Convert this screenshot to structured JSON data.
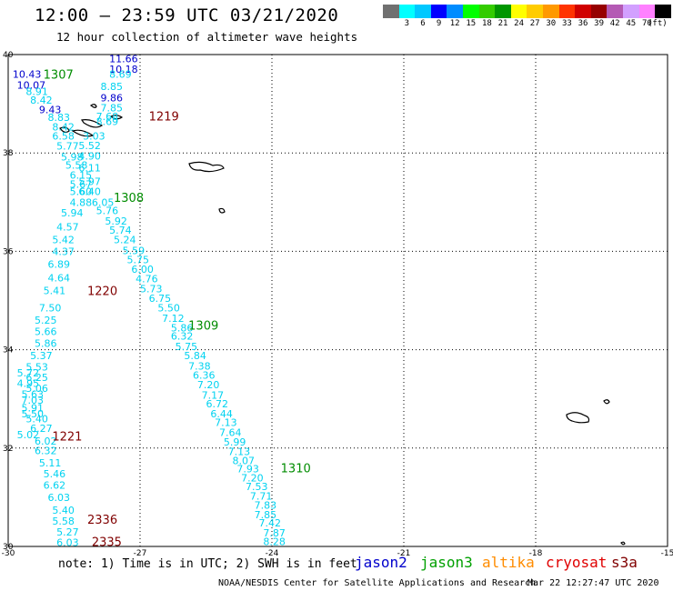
{
  "header": {
    "title": "12:00 – 23:59 UTC 03/21/2020",
    "subtitle": "12 hour collection of altimeter wave heights"
  },
  "scale": {
    "unit_label": "(ft)",
    "swatches": [
      {
        "color": "#707070",
        "label": ""
      },
      {
        "color": "#00ffff",
        "label": "3"
      },
      {
        "color": "#00c8ff",
        "label": "6"
      },
      {
        "color": "#0000ff",
        "label": "9"
      },
      {
        "color": "#008cff",
        "label": "12"
      },
      {
        "color": "#00ff00",
        "label": "15"
      },
      {
        "color": "#33cc00",
        "label": "18"
      },
      {
        "color": "#009600",
        "label": "21"
      },
      {
        "color": "#ffff00",
        "label": "24"
      },
      {
        "color": "#ffcc00",
        "label": "27"
      },
      {
        "color": "#ff9900",
        "label": "30"
      },
      {
        "color": "#ff3300",
        "label": "33"
      },
      {
        "color": "#d00000",
        "label": "36"
      },
      {
        "color": "#960000",
        "label": "39"
      },
      {
        "color": "#b45ab4",
        "label": "42"
      },
      {
        "color": "#d2a0ff",
        "label": "45"
      },
      {
        "color": "#ff80ff",
        "label": "70"
      },
      {
        "color": "#000000",
        "label": ""
      }
    ]
  },
  "map": {
    "lon_labels": [
      {
        "value": -30,
        "label": "-30"
      },
      {
        "value": -27,
        "label": "-27"
      },
      {
        "value": -24,
        "label": "-24"
      },
      {
        "value": -21,
        "label": "-21"
      },
      {
        "value": -18,
        "label": "-18"
      },
      {
        "value": -15,
        "label": "-15"
      }
    ],
    "lat_labels": [
      {
        "value": 40,
        "label": "40"
      },
      {
        "value": 38,
        "label": "38"
      },
      {
        "value": 36,
        "label": "36"
      },
      {
        "value": 34,
        "label": "34"
      },
      {
        "value": 32,
        "label": "32"
      },
      {
        "value": 30,
        "label": "30"
      }
    ],
    "pass_colors": {
      "cyan": "#00d2f0",
      "blue": "#0000cc",
      "green": "#008c00",
      "red": "#800000"
    },
    "pass_labels": [
      {
        "text": "1307",
        "lon": -29.2,
        "lat": 39.6,
        "color": "green"
      },
      {
        "text": "1219",
        "lon": -26.8,
        "lat": 38.75,
        "color": "red"
      },
      {
        "text": "1308",
        "lon": -27.6,
        "lat": 37.1,
        "color": "green"
      },
      {
        "text": "1220",
        "lon": -28.2,
        "lat": 35.2,
        "color": "red"
      },
      {
        "text": "1309",
        "lon": -25.9,
        "lat": 34.5,
        "color": "green"
      },
      {
        "text": "1221",
        "lon": -29.0,
        "lat": 32.25,
        "color": "red"
      },
      {
        "text": "1310",
        "lon": -23.8,
        "lat": 31.6,
        "color": "green"
      },
      {
        "text": "2336",
        "lon": -28.2,
        "lat": 30.55,
        "color": "red"
      },
      {
        "text": "2335",
        "lon": -28.1,
        "lat": 30.1,
        "color": "red"
      }
    ],
    "wave_labels": [
      {
        "text": "11.66",
        "lon": -27.7,
        "lat": 39.92,
        "color": "blue"
      },
      {
        "text": "10.43",
        "lon": -29.9,
        "lat": 39.6,
        "color": "blue"
      },
      {
        "text": "10.18",
        "lon": -27.7,
        "lat": 39.7,
        "color": "blue"
      },
      {
        "text": "10.07",
        "lon": -29.8,
        "lat": 39.38,
        "color": "blue"
      },
      {
        "text": "8.69",
        "lon": -27.7,
        "lat": 39.6,
        "color": "cyan"
      },
      {
        "text": "8.91",
        "lon": -29.6,
        "lat": 39.25,
        "color": "cyan"
      },
      {
        "text": "8.85",
        "lon": -27.9,
        "lat": 39.35,
        "color": "cyan"
      },
      {
        "text": "8.42",
        "lon": -29.5,
        "lat": 39.08,
        "color": "cyan"
      },
      {
        "text": "9.86",
        "lon": -27.9,
        "lat": 39.12,
        "color": "blue"
      },
      {
        "text": "9.43",
        "lon": -29.3,
        "lat": 38.88,
        "color": "blue"
      },
      {
        "text": "7.85",
        "lon": -27.9,
        "lat": 38.92,
        "color": "cyan"
      },
      {
        "text": "8.83",
        "lon": -29.1,
        "lat": 38.72,
        "color": "cyan"
      },
      {
        "text": "7.68",
        "lon": -28.0,
        "lat": 38.74,
        "color": "cyan"
      },
      {
        "text": "8.42",
        "lon": -29.0,
        "lat": 38.53,
        "color": "cyan"
      },
      {
        "text": "8.69",
        "lon": -28.0,
        "lat": 38.64,
        "color": "cyan"
      },
      {
        "text": "6.58",
        "lon": -29.0,
        "lat": 38.35,
        "color": "cyan"
      },
      {
        "text": "3.03",
        "lon": -28.3,
        "lat": 38.35,
        "color": "cyan"
      },
      {
        "text": "5.77",
        "lon": -28.9,
        "lat": 38.14,
        "color": "cyan"
      },
      {
        "text": "5.52",
        "lon": -28.4,
        "lat": 38.15,
        "color": "cyan"
      },
      {
        "text": "5.98",
        "lon": -28.8,
        "lat": 37.92,
        "color": "cyan"
      },
      {
        "text": "4.90",
        "lon": -28.4,
        "lat": 37.94,
        "color": "cyan"
      },
      {
        "text": "5.58",
        "lon": -28.7,
        "lat": 37.75,
        "color": "cyan"
      },
      {
        "text": "6.11",
        "lon": -28.4,
        "lat": 37.7,
        "color": "cyan"
      },
      {
        "text": "6.15",
        "lon": -28.6,
        "lat": 37.55,
        "color": "cyan"
      },
      {
        "text": "5.97",
        "lon": -28.4,
        "lat": 37.42,
        "color": "cyan"
      },
      {
        "text": "5.67",
        "lon": -28.6,
        "lat": 37.37,
        "color": "cyan"
      },
      {
        "text": "5.60",
        "lon": -28.6,
        "lat": 37.22,
        "color": "cyan"
      },
      {
        "text": "6.40",
        "lon": -28.4,
        "lat": 37.22,
        "color": "cyan"
      },
      {
        "text": "4.88",
        "lon": -28.6,
        "lat": 37.0,
        "color": "cyan"
      },
      {
        "text": "6.05",
        "lon": -28.1,
        "lat": 37.0,
        "color": "cyan"
      },
      {
        "text": "5.94",
        "lon": -28.8,
        "lat": 36.78,
        "color": "cyan"
      },
      {
        "text": "5.76",
        "lon": -28.0,
        "lat": 36.83,
        "color": "cyan"
      },
      {
        "text": "5.92",
        "lon": -27.8,
        "lat": 36.62,
        "color": "cyan"
      },
      {
        "text": "4.57",
        "lon": -28.9,
        "lat": 36.5,
        "color": "cyan"
      },
      {
        "text": "5.74",
        "lon": -27.7,
        "lat": 36.43,
        "color": "cyan"
      },
      {
        "text": "5.42",
        "lon": -29.0,
        "lat": 36.24,
        "color": "cyan"
      },
      {
        "text": "5.24",
        "lon": -27.6,
        "lat": 36.24,
        "color": "cyan"
      },
      {
        "text": "4.37",
        "lon": -29.0,
        "lat": 36.0,
        "color": "cyan"
      },
      {
        "text": "5.59",
        "lon": -27.4,
        "lat": 36.02,
        "color": "cyan"
      },
      {
        "text": "5.75",
        "lon": -27.3,
        "lat": 35.83,
        "color": "cyan"
      },
      {
        "text": "6.89",
        "lon": -29.1,
        "lat": 35.74,
        "color": "cyan"
      },
      {
        "text": "6.00",
        "lon": -27.2,
        "lat": 35.64,
        "color": "cyan"
      },
      {
        "text": "4.64",
        "lon": -29.1,
        "lat": 35.46,
        "color": "cyan"
      },
      {
        "text": "4.76",
        "lon": -27.1,
        "lat": 35.44,
        "color": "cyan"
      },
      {
        "text": "5.41",
        "lon": -29.2,
        "lat": 35.2,
        "color": "cyan"
      },
      {
        "text": "5.73",
        "lon": -27.0,
        "lat": 35.24,
        "color": "cyan"
      },
      {
        "text": "6.75",
        "lon": -26.8,
        "lat": 35.05,
        "color": "cyan"
      },
      {
        "text": "7.50",
        "lon": -29.3,
        "lat": 34.85,
        "color": "cyan"
      },
      {
        "text": "5.50",
        "lon": -26.6,
        "lat": 34.85,
        "color": "cyan"
      },
      {
        "text": "5.25",
        "lon": -29.4,
        "lat": 34.6,
        "color": "cyan"
      },
      {
        "text": "7.12",
        "lon": -26.5,
        "lat": 34.64,
        "color": "cyan"
      },
      {
        "text": "5.86",
        "lon": -26.3,
        "lat": 34.45,
        "color": "cyan"
      },
      {
        "text": "5.66",
        "lon": -29.4,
        "lat": 34.37,
        "color": "cyan"
      },
      {
        "text": "6.32",
        "lon": -26.3,
        "lat": 34.28,
        "color": "cyan"
      },
      {
        "text": "5.86",
        "lon": -29.4,
        "lat": 34.13,
        "color": "cyan"
      },
      {
        "text": "5.75",
        "lon": -26.2,
        "lat": 34.07,
        "color": "cyan"
      },
      {
        "text": "5.37",
        "lon": -29.5,
        "lat": 33.88,
        "color": "cyan"
      },
      {
        "text": "5.84",
        "lon": -26.0,
        "lat": 33.88,
        "color": "cyan"
      },
      {
        "text": "7.38",
        "lon": -25.9,
        "lat": 33.67,
        "color": "cyan"
      },
      {
        "text": "5.53",
        "lon": -29.6,
        "lat": 33.65,
        "color": "cyan"
      },
      {
        "text": "5.72",
        "lon": -29.8,
        "lat": 33.53,
        "color": "cyan"
      },
      {
        "text": "6.36",
        "lon": -25.8,
        "lat": 33.48,
        "color": "cyan"
      },
      {
        "text": "6.25",
        "lon": -29.6,
        "lat": 33.44,
        "color": "cyan"
      },
      {
        "text": "4.95",
        "lon": -29.8,
        "lat": 33.32,
        "color": "cyan"
      },
      {
        "text": "7.20",
        "lon": -25.7,
        "lat": 33.29,
        "color": "cyan"
      },
      {
        "text": "5.06",
        "lon": -29.6,
        "lat": 33.22,
        "color": "cyan"
      },
      {
        "text": "5.63",
        "lon": -29.7,
        "lat": 33.1,
        "color": "cyan"
      },
      {
        "text": "7.17",
        "lon": -25.6,
        "lat": 33.08,
        "color": "cyan"
      },
      {
        "text": "7.03",
        "lon": -29.7,
        "lat": 32.98,
        "color": "cyan"
      },
      {
        "text": "6.72",
        "lon": -25.5,
        "lat": 32.9,
        "color": "cyan"
      },
      {
        "text": "5.91",
        "lon": -29.7,
        "lat": 32.82,
        "color": "cyan"
      },
      {
        "text": "6.44",
        "lon": -25.4,
        "lat": 32.7,
        "color": "cyan"
      },
      {
        "text": "5.50",
        "lon": -29.7,
        "lat": 32.7,
        "color": "cyan"
      },
      {
        "text": "5.40",
        "lon": -29.6,
        "lat": 32.6,
        "color": "cyan"
      },
      {
        "text": "7.13",
        "lon": -25.3,
        "lat": 32.52,
        "color": "cyan"
      },
      {
        "text": "6.27",
        "lon": -29.5,
        "lat": 32.4,
        "color": "cyan"
      },
      {
        "text": "7.64",
        "lon": -25.2,
        "lat": 32.32,
        "color": "cyan"
      },
      {
        "text": "5.02",
        "lon": -29.8,
        "lat": 32.27,
        "color": "cyan"
      },
      {
        "text": "6.02",
        "lon": -29.4,
        "lat": 32.14,
        "color": "cyan"
      },
      {
        "text": "5.99",
        "lon": -25.1,
        "lat": 32.13,
        "color": "cyan"
      },
      {
        "text": "6.32",
        "lon": -29.4,
        "lat": 31.95,
        "color": "cyan"
      },
      {
        "text": "7.13",
        "lon": -25.0,
        "lat": 31.93,
        "color": "cyan"
      },
      {
        "text": "8.07",
        "lon": -24.9,
        "lat": 31.75,
        "color": "cyan"
      },
      {
        "text": "5.11",
        "lon": -29.3,
        "lat": 31.7,
        "color": "cyan"
      },
      {
        "text": "7.93",
        "lon": -24.8,
        "lat": 31.58,
        "color": "cyan"
      },
      {
        "text": "5.46",
        "lon": -29.2,
        "lat": 31.48,
        "color": "cyan"
      },
      {
        "text": "7.20",
        "lon": -24.7,
        "lat": 31.4,
        "color": "cyan"
      },
      {
        "text": "6.62",
        "lon": -29.2,
        "lat": 31.25,
        "color": "cyan"
      },
      {
        "text": "7.53",
        "lon": -24.6,
        "lat": 31.22,
        "color": "cyan"
      },
      {
        "text": "7.71",
        "lon": -24.5,
        "lat": 31.03,
        "color": "cyan"
      },
      {
        "text": "6.03",
        "lon": -29.1,
        "lat": 31.0,
        "color": "cyan"
      },
      {
        "text": "7.83",
        "lon": -24.4,
        "lat": 30.84,
        "color": "cyan"
      },
      {
        "text": "5.40",
        "lon": -29.0,
        "lat": 30.74,
        "color": "cyan"
      },
      {
        "text": "7.85",
        "lon": -24.4,
        "lat": 30.65,
        "color": "cyan"
      },
      {
        "text": "5.58",
        "lon": -29.0,
        "lat": 30.52,
        "color": "cyan"
      },
      {
        "text": "7.42",
        "lon": -24.3,
        "lat": 30.48,
        "color": "cyan"
      },
      {
        "text": "5.27",
        "lon": -28.9,
        "lat": 30.3,
        "color": "cyan"
      },
      {
        "text": "7.87",
        "lon": -24.2,
        "lat": 30.28,
        "color": "cyan"
      },
      {
        "text": "6.03",
        "lon": -28.9,
        "lat": 30.08,
        "color": "cyan"
      },
      {
        "text": "8.28",
        "lon": -24.2,
        "lat": 30.1,
        "color": "cyan"
      }
    ]
  },
  "footer": {
    "note": "note: 1) Time is in UTC; 2) SWH is in feet",
    "credit": "NOAA/NESDIS Center for Satellite Applications and Research",
    "timestamp": "Mar 22 12:27:47 UTC 2020",
    "satellites": [
      {
        "name": "jason2",
        "color": "#0000cc"
      },
      {
        "name": "jason3",
        "color": "#00a000"
      },
      {
        "name": "altika",
        "color": "#ff8c00"
      },
      {
        "name": "cryosat",
        "color": "#e00000"
      },
      {
        "name": "s3a",
        "color": "#800000"
      }
    ]
  }
}
